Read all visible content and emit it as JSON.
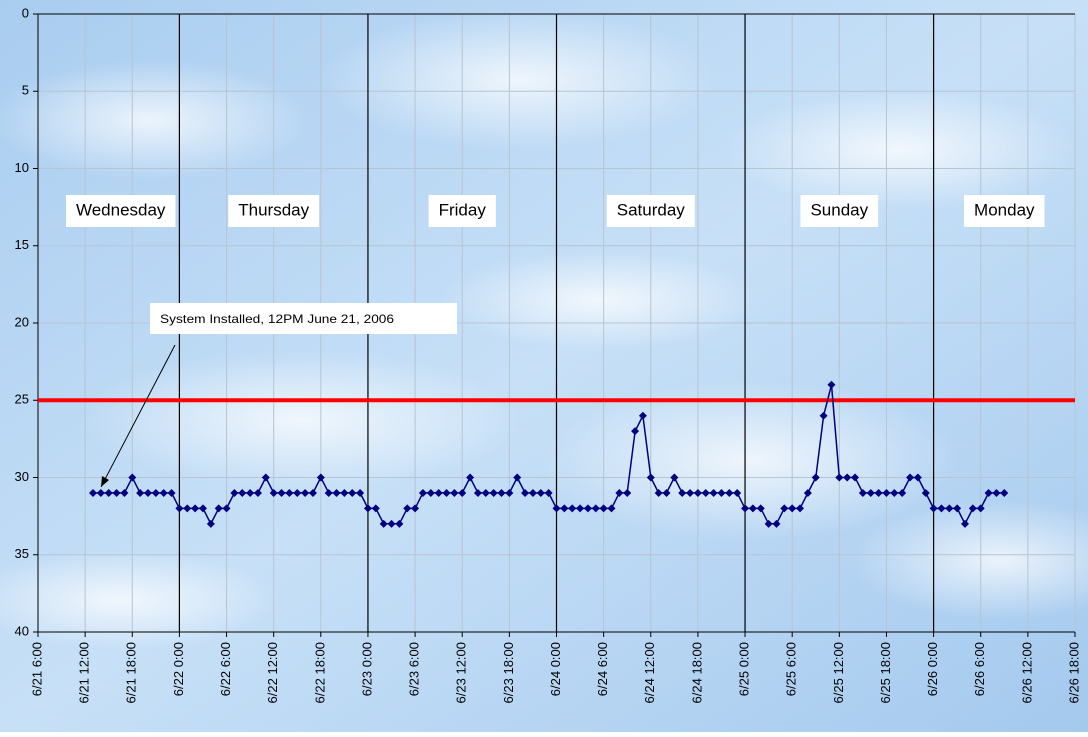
{
  "chart_data": {
    "type": "line",
    "color": "#000080",
    "annotation": "System Installed, 12PM June 21, 2006",
    "day_labels": [
      "Wednesday",
      "Thursday",
      "Friday",
      "Saturday",
      "Sunday",
      "Monday"
    ],
    "reference_line": 25,
    "reference_color": "#ff0000",
    "ylim": [
      0,
      40
    ],
    "y_reversed": true,
    "yticks": [
      0,
      5,
      10,
      15,
      20,
      25,
      30,
      35,
      40
    ],
    "grid": true,
    "xlim": [
      "6/21 6:00",
      "6/26 18:00"
    ],
    "xticks": [
      "6/21 6:00",
      "6/21 12:00",
      "6/21 18:00",
      "6/22 0:00",
      "6/22 6:00",
      "6/22 12:00",
      "6/22 18:00",
      "6/23 0:00",
      "6/23 6:00",
      "6/23 12:00",
      "6/23 18:00",
      "6/24 0:00",
      "6/24 6:00",
      "6/24 12:00",
      "6/24 18:00",
      "6/25 0:00",
      "6/25 6:00",
      "6/25 12:00",
      "6/25 18:00",
      "6/26 0:00",
      "6/26 6:00",
      "6/26 12:00",
      "6/26 18:00"
    ],
    "x": [
      "6/21 13:00",
      "6/21 14:00",
      "6/21 15:00",
      "6/21 16:00",
      "6/21 17:00",
      "6/21 18:00",
      "6/21 19:00",
      "6/21 20:00",
      "6/21 21:00",
      "6/21 22:00",
      "6/21 23:00",
      "6/22 0:00",
      "6/22 1:00",
      "6/22 2:00",
      "6/22 3:00",
      "6/22 4:00",
      "6/22 5:00",
      "6/22 6:00",
      "6/22 7:00",
      "6/22 8:00",
      "6/22 9:00",
      "6/22 10:00",
      "6/22 11:00",
      "6/22 12:00",
      "6/22 13:00",
      "6/22 14:00",
      "6/22 15:00",
      "6/22 16:00",
      "6/22 17:00",
      "6/22 18:00",
      "6/22 19:00",
      "6/22 20:00",
      "6/22 21:00",
      "6/22 22:00",
      "6/22 23:00",
      "6/23 0:00",
      "6/23 1:00",
      "6/23 2:00",
      "6/23 3:00",
      "6/23 4:00",
      "6/23 5:00",
      "6/23 6:00",
      "6/23 7:00",
      "6/23 8:00",
      "6/23 9:00",
      "6/23 10:00",
      "6/23 11:00",
      "6/23 12:00",
      "6/23 13:00",
      "6/23 14:00",
      "6/23 15:00",
      "6/23 16:00",
      "6/23 17:00",
      "6/23 18:00",
      "6/23 19:00",
      "6/23 20:00",
      "6/23 21:00",
      "6/23 22:00",
      "6/23 23:00",
      "6/24 0:00",
      "6/24 1:00",
      "6/24 2:00",
      "6/24 3:00",
      "6/24 4:00",
      "6/24 5:00",
      "6/24 6:00",
      "6/24 7:00",
      "6/24 8:00",
      "6/24 9:00",
      "6/24 10:00",
      "6/24 11:00",
      "6/24 12:00",
      "6/24 13:00",
      "6/24 14:00",
      "6/24 15:00",
      "6/24 16:00",
      "6/24 17:00",
      "6/24 18:00",
      "6/24 19:00",
      "6/24 20:00",
      "6/24 21:00",
      "6/24 22:00",
      "6/24 23:00",
      "6/25 0:00",
      "6/25 1:00",
      "6/25 2:00",
      "6/25 3:00",
      "6/25 4:00",
      "6/25 5:00",
      "6/25 6:00",
      "6/25 7:00",
      "6/25 8:00",
      "6/25 9:00",
      "6/25 10:00",
      "6/25 11:00",
      "6/25 12:00",
      "6/25 13:00",
      "6/25 14:00",
      "6/25 15:00",
      "6/25 16:00",
      "6/25 17:00",
      "6/25 18:00",
      "6/25 19:00",
      "6/25 20:00",
      "6/25 21:00",
      "6/25 22:00",
      "6/25 23:00",
      "6/26 0:00",
      "6/26 1:00",
      "6/26 2:00",
      "6/26 3:00",
      "6/26 4:00",
      "6/26 5:00",
      "6/26 6:00",
      "6/26 7:00",
      "6/26 8:00",
      "6/26 9:00"
    ],
    "values": [
      31,
      31,
      31,
      31,
      31,
      30,
      31,
      31,
      31,
      31,
      31,
      32,
      32,
      32,
      32,
      33,
      32,
      32,
      31,
      31,
      31,
      31,
      30,
      31,
      31,
      31,
      31,
      31,
      31,
      30,
      31,
      31,
      31,
      31,
      31,
      32,
      32,
      33,
      33,
      33,
      32,
      32,
      31,
      31,
      31,
      31,
      31,
      31,
      30,
      31,
      31,
      31,
      31,
      31,
      30,
      31,
      31,
      31,
      31,
      32,
      32,
      32,
      32,
      32,
      32,
      32,
      32,
      31,
      31,
      27,
      26,
      30,
      31,
      31,
      30,
      31,
      31,
      31,
      31,
      31,
      31,
      31,
      31,
      32,
      32,
      32,
      33,
      33,
      32,
      32,
      32,
      31,
      30,
      26,
      24,
      30,
      30,
      30,
      31,
      31,
      31,
      31,
      31,
      31,
      30,
      30,
      31,
      32,
      32,
      32,
      32,
      33,
      32,
      32,
      31,
      31,
      31
    ]
  }
}
